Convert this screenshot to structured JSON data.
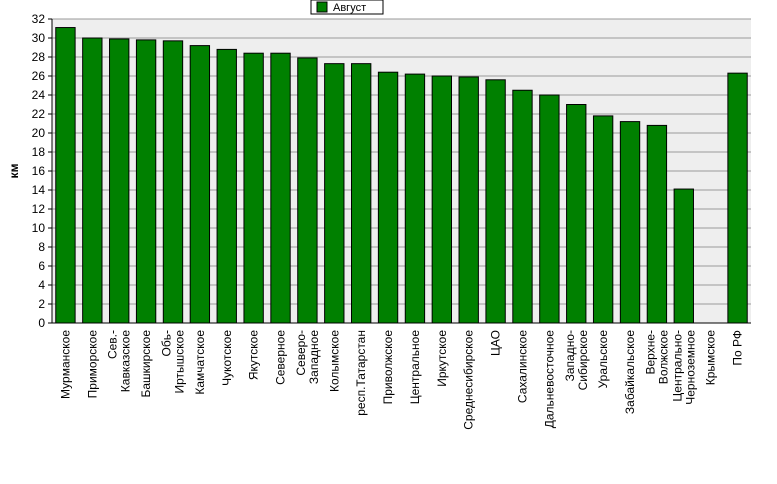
{
  "chart_data": {
    "type": "bar",
    "title": "",
    "xlabel": "",
    "ylabel": "км",
    "ylim": [
      0,
      32
    ],
    "y_ticks": [
      0,
      2,
      4,
      6,
      8,
      10,
      12,
      14,
      16,
      18,
      20,
      22,
      24,
      26,
      28,
      30,
      32
    ],
    "grid": true,
    "legend_position": "top-center",
    "bar_color": "#008000",
    "plot_background": "#eeeeee",
    "categories": [
      "Мурманское",
      "Приморское",
      "Сев.-Кавказское",
      "Башкирское",
      "Обь-Иртышское",
      "Камчатское",
      "Чукотское",
      "Якутское",
      "Северное",
      "Северо-Западное",
      "Колымское",
      "респ.Татарстан",
      "Приволжское",
      "Центральное",
      "Иркутское",
      "Среднесибирское",
      "ЦАО",
      "Сахалинское",
      "Дальневосточное",
      "Западно-Сибирское",
      "Уральское",
      "Забайкальское",
      "Верхне-Волжское",
      "Центрально-Черноземное",
      "Крымское",
      "По РФ"
    ],
    "category_lines": [
      [
        "Мурманское"
      ],
      [
        "Приморское"
      ],
      [
        "Сев.-",
        "Кавказское"
      ],
      [
        "Башкирское"
      ],
      [
        "Обь-",
        "Иртышское"
      ],
      [
        "Камчатское"
      ],
      [
        "Чукотское"
      ],
      [
        "Якутское"
      ],
      [
        "Северное"
      ],
      [
        "Северо-",
        "Западное"
      ],
      [
        "Колымское"
      ],
      [
        "респ.Татарстан"
      ],
      [
        "Приволжское"
      ],
      [
        "Центральное"
      ],
      [
        "Иркутское"
      ],
      [
        "Среднесибирское"
      ],
      [
        "ЦАО"
      ],
      [
        "Сахалинское"
      ],
      [
        "Дальневосточное"
      ],
      [
        "Западно-",
        "Сибирское"
      ],
      [
        "Уральское"
      ],
      [
        "Забайкальское"
      ],
      [
        "Верхне-",
        "Волжское"
      ],
      [
        "Центрально-",
        "Черноземное"
      ],
      [
        "Крымское"
      ],
      [
        "По РФ"
      ]
    ],
    "series": [
      {
        "name": "Август",
        "color": "#008000",
        "values": [
          31.1,
          30.0,
          29.9,
          29.8,
          29.7,
          29.2,
          28.8,
          28.4,
          28.4,
          27.9,
          27.3,
          27.3,
          26.4,
          26.2,
          26.0,
          25.9,
          25.6,
          24.5,
          24.0,
          23.0,
          21.8,
          21.2,
          20.8,
          14.1,
          0,
          26.3
        ]
      }
    ]
  }
}
